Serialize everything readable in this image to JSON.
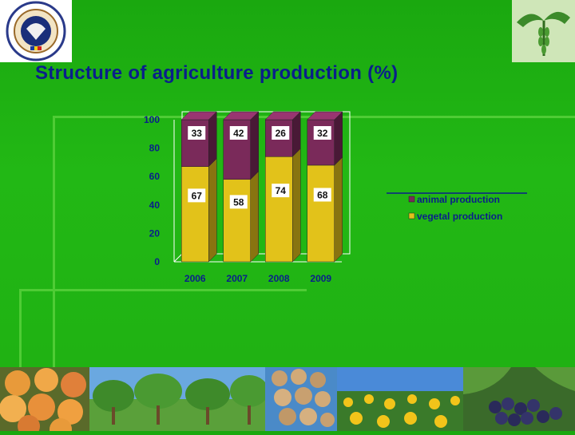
{
  "slide": {
    "title": "Structure of agriculture production (%)"
  },
  "colors": {
    "background": "#1fb012",
    "title": "#0a1f8a",
    "animal": "#7a2a5a",
    "vegetal": "#e2c21a"
  },
  "icons": {
    "left_logo": "ministry-seal-icon",
    "right_logo": "wings-wheat-emblem-icon"
  },
  "photos": [
    "apricots",
    "orchard",
    "walnuts",
    "sunflower-field",
    "grapes"
  ],
  "chart_data": {
    "type": "bar",
    "stacked": true,
    "categories": [
      "2006",
      "2007",
      "2008",
      "2009"
    ],
    "series": [
      {
        "name": "vegetal production",
        "values": [
          67,
          58,
          74,
          68
        ],
        "color": "#e2c21a"
      },
      {
        "name": "animal production",
        "values": [
          33,
          42,
          26,
          32
        ],
        "color": "#7a2a5a"
      }
    ],
    "y_ticks": [
      "0",
      "20",
      "40",
      "60",
      "80",
      "100"
    ],
    "ylim": [
      0,
      100
    ],
    "legend_position": "right",
    "grid": false,
    "title": "",
    "xlabel": "",
    "ylabel": ""
  }
}
